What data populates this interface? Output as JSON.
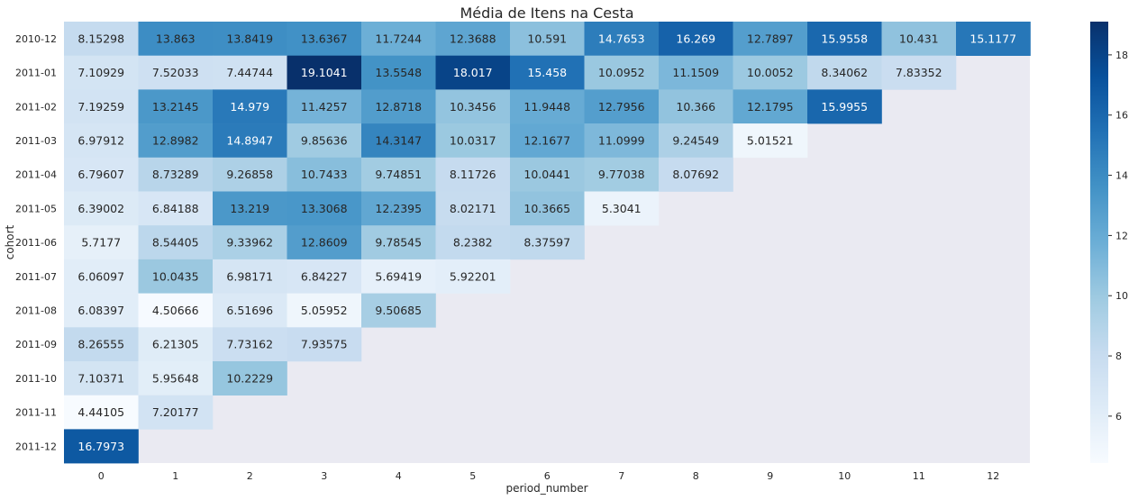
{
  "chart_data": {
    "type": "heatmap",
    "title": "Média de Itens na Cesta",
    "xlabel": "period_number",
    "ylabel": "cohort",
    "colormap": "Blues",
    "background_color": "#eaeaf2",
    "vmin": 4.44105,
    "vmax": 19.1041,
    "colorbar_ticks": [
      "6",
      "8",
      "10",
      "12",
      "14",
      "16",
      "18"
    ],
    "colorbar_tick_values": [
      6,
      8,
      10,
      12,
      14,
      16,
      18
    ],
    "x_categories": [
      "0",
      "1",
      "2",
      "3",
      "4",
      "5",
      "6",
      "7",
      "8",
      "9",
      "10",
      "11",
      "12"
    ],
    "y_categories": [
      "2010-12",
      "2011-01",
      "2011-02",
      "2011-03",
      "2011-04",
      "2011-05",
      "2011-06",
      "2011-07",
      "2011-08",
      "2011-09",
      "2011-10",
      "2011-11",
      "2011-12"
    ],
    "values": [
      [
        8.15298,
        13.863,
        13.8419,
        13.6367,
        11.7244,
        12.3688,
        10.591,
        14.7653,
        16.269,
        12.7897,
        15.9558,
        10.431,
        15.1177
      ],
      [
        7.10929,
        7.52033,
        7.44744,
        19.1041,
        13.5548,
        18.017,
        15.458,
        10.0952,
        11.1509,
        10.0052,
        8.34062,
        7.83352
      ],
      [
        7.19259,
        13.2145,
        14.979,
        11.4257,
        12.8718,
        10.3456,
        11.9448,
        12.7956,
        10.366,
        12.1795,
        15.9955
      ],
      [
        6.97912,
        12.8982,
        14.8947,
        9.85636,
        14.3147,
        10.0317,
        12.1677,
        11.0999,
        9.24549,
        5.01521
      ],
      [
        6.79607,
        8.73289,
        9.26858,
        10.7433,
        9.74851,
        8.11726,
        10.0441,
        9.77038,
        8.07692
      ],
      [
        6.39002,
        6.84188,
        13.219,
        13.3068,
        12.2395,
        8.02171,
        10.3665,
        5.3041
      ],
      [
        5.7177,
        8.54405,
        9.33962,
        12.8609,
        9.78545,
        8.2382,
        8.37597
      ],
      [
        6.06097,
        10.0435,
        6.98171,
        6.84227,
        5.69419,
        5.92201
      ],
      [
        6.08397,
        4.50666,
        6.51696,
        5.05952,
        9.50685
      ],
      [
        8.26555,
        6.21305,
        7.73162,
        7.93575
      ],
      [
        7.10371,
        5.95648,
        10.2229
      ],
      [
        4.44105,
        7.20177
      ],
      [
        16.7973
      ]
    ],
    "labels": [
      [
        "8.15298",
        "13.863",
        "13.8419",
        "13.6367",
        "11.7244",
        "12.3688",
        "10.591",
        "14.7653",
        "16.269",
        "12.7897",
        "15.9558",
        "10.431",
        "15.1177"
      ],
      [
        "7.10929",
        "7.52033",
        "7.44744",
        "19.1041",
        "13.5548",
        "18.017",
        "15.458",
        "10.0952",
        "11.1509",
        "10.0052",
        "8.34062",
        "7.83352"
      ],
      [
        "7.19259",
        "13.2145",
        "14.979",
        "11.4257",
        "12.8718",
        "10.3456",
        "11.9448",
        "12.7956",
        "10.366",
        "12.1795",
        "15.9955"
      ],
      [
        "6.97912",
        "12.8982",
        "14.8947",
        "9.85636",
        "14.3147",
        "10.0317",
        "12.1677",
        "11.0999",
        "9.24549",
        "5.01521"
      ],
      [
        "6.79607",
        "8.73289",
        "9.26858",
        "10.7433",
        "9.74851",
        "8.11726",
        "10.0441",
        "9.77038",
        "8.07692"
      ],
      [
        "6.39002",
        "6.84188",
        "13.219",
        "13.3068",
        "12.2395",
        "8.02171",
        "10.3665",
        "5.3041"
      ],
      [
        "5.7177",
        "8.54405",
        "9.33962",
        "12.8609",
        "9.78545",
        "8.2382",
        "8.37597"
      ],
      [
        "6.06097",
        "10.0435",
        "6.98171",
        "6.84227",
        "5.69419",
        "5.92201"
      ],
      [
        "6.08397",
        "4.50666",
        "6.51696",
        "5.05952",
        "9.50685"
      ],
      [
        "8.26555",
        "6.21305",
        "7.73162",
        "7.93575"
      ],
      [
        "7.10371",
        "5.95648",
        "10.2229"
      ],
      [
        "4.44105",
        "7.20177"
      ],
      [
        "16.7973"
      ]
    ]
  }
}
